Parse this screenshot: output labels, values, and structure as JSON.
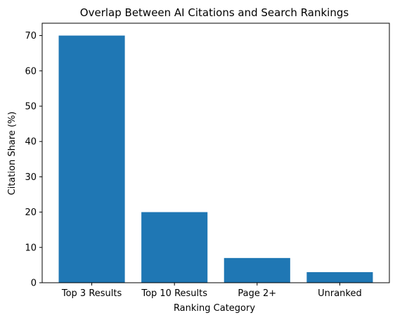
{
  "chart_data": {
    "type": "bar",
    "title": "Overlap Between AI Citations and Search Rankings",
    "xlabel": "Ranking Category",
    "ylabel": "Citation Share (%)",
    "categories": [
      "Top 3 Results",
      "Top 10 Results",
      "Page 2+",
      "Unranked"
    ],
    "values": [
      70,
      20,
      7,
      3
    ],
    "ylim": [
      0,
      73.5
    ],
    "yticks": [
      0,
      10,
      20,
      30,
      40,
      50,
      60,
      70
    ],
    "grid": false,
    "colors": {
      "bar": "#1f77b4",
      "axis": "#000000",
      "background": "#ffffff"
    }
  }
}
